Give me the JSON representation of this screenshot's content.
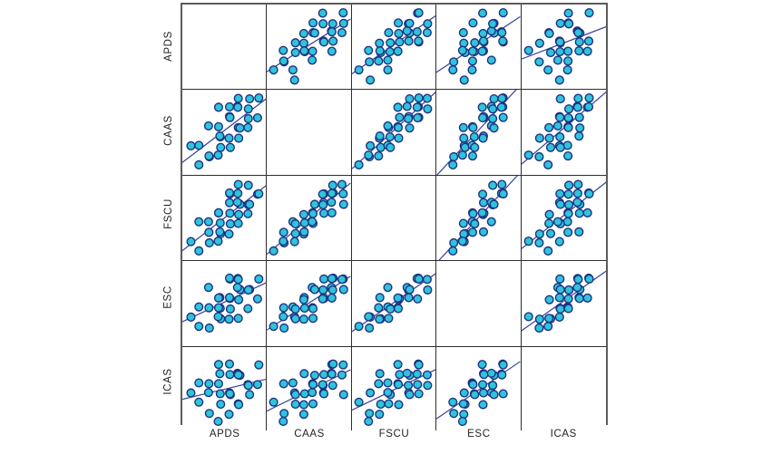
{
  "chart_data": {
    "type": "scatter",
    "subtype": "scatterplot_matrix",
    "title": "",
    "variables": [
      "APDS",
      "CAAS",
      "FSCU",
      "ESC",
      "ICAS"
    ],
    "row_labels": [
      "APDS",
      "CAAS",
      "FSCU",
      "ESC",
      "ICAS"
    ],
    "col_labels": [
      "APDS",
      "CAAS",
      "FSCU",
      "ESC",
      "ICAS"
    ],
    "diagonal": "empty",
    "fit_line": true,
    "n_observations": 30,
    "value_range": [
      1,
      10
    ],
    "observations": [
      [
        3,
        2,
        2,
        3,
        4
      ],
      [
        4,
        3,
        3,
        3,
        3
      ],
      [
        2,
        4,
        3,
        4,
        5
      ],
      [
        5,
        4,
        4,
        4,
        4
      ],
      [
        4,
        3,
        4,
        5,
        6
      ],
      [
        6,
        5,
        4,
        4,
        3
      ],
      [
        5,
        5,
        5,
        5,
        5
      ],
      [
        3,
        4,
        5,
        5,
        6
      ],
      [
        7,
        6,
        5,
        4,
        4
      ],
      [
        5,
        5,
        4,
        6,
        7
      ],
      [
        6,
        4,
        5,
        5,
        5
      ],
      [
        5,
        6,
        6,
        5,
        6
      ],
      [
        7,
        5,
        6,
        6,
        4
      ],
      [
        6,
        7,
        6,
        6,
        7
      ],
      [
        4,
        6,
        5,
        7,
        5
      ],
      [
        8,
        6,
        6,
        5,
        6
      ],
      [
        6,
        7,
        7,
        6,
        5
      ],
      [
        7,
        6,
        7,
        7,
        7
      ],
      [
        5,
        8,
        6,
        6,
        8
      ],
      [
        8,
        7,
        7,
        7,
        6
      ],
      [
        6,
        7,
        8,
        8,
        5
      ],
      [
        7,
        8,
        7,
        7,
        7
      ],
      [
        9,
        7,
        8,
        6,
        6
      ],
      [
        6,
        8,
        8,
        8,
        8
      ],
      [
        8,
        9,
        7,
        7,
        5
      ],
      [
        7,
        8,
        8,
        8,
        7
      ],
      [
        8,
        8,
        9,
        7,
        6
      ],
      [
        9,
        9,
        8,
        8,
        8
      ],
      [
        5,
        3,
        3,
        4,
        2
      ],
      [
        7,
        9,
        9,
        8,
        7
      ]
    ],
    "style": {
      "point_fill": "#2FC4DA",
      "point_stroke": "#1E3282",
      "fit_line_color": "#36439B",
      "inner_grid_color": "#2E2E2E",
      "outer_border_color": "#5B5B5B",
      "label_color": "#1F1F1F",
      "background": "#FFFFFF"
    }
  }
}
